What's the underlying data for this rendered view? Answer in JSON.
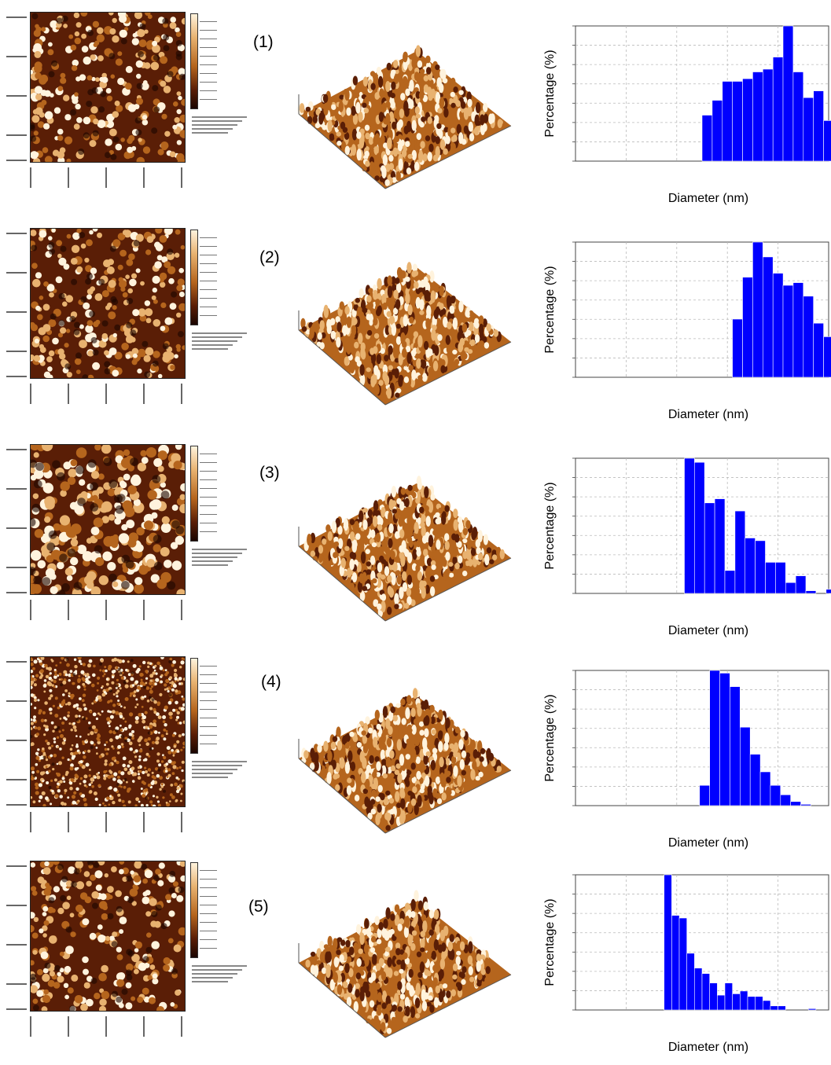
{
  "common": {
    "xlabel": "Diameter (nm)",
    "ylabel": "Percentage (%)",
    "bar_color": "#0000ff",
    "afm_colors": [
      "#1a0500",
      "#5a1e06",
      "#b5651d",
      "#e8b270",
      "#fff3dd"
    ]
  },
  "panels": [
    {
      "label": "(1)"
    },
    {
      "label": "(2)"
    },
    {
      "label": "(3)"
    },
    {
      "label": "(4)"
    },
    {
      "label": "(5)"
    }
  ],
  "chart_data": [
    {
      "type": "bar",
      "title": "",
      "xlabel": "Diameter (nm)",
      "ylabel": "Percentage (%)",
      "xlim": [
        0,
        1
      ],
      "ylim": [
        0,
        100
      ],
      "grid": true,
      "bins": [
        0.5,
        0.54,
        0.58,
        0.62,
        0.66,
        0.7,
        0.74,
        0.78,
        0.82,
        0.86,
        0.9,
        0.94,
        0.98
      ],
      "bin_width": 0.04,
      "values": [
        34,
        45,
        59,
        59,
        61,
        66,
        68,
        77,
        100,
        66,
        47,
        52,
        30
      ]
    },
    {
      "type": "bar",
      "title": "",
      "xlabel": "Diameter (nm)",
      "ylabel": "Percentage (%)",
      "xlim": [
        0,
        1
      ],
      "ylim": [
        0,
        100
      ],
      "grid": true,
      "bins": [
        0.62,
        0.66,
        0.7,
        0.74,
        0.78,
        0.82,
        0.86,
        0.9,
        0.94,
        0.98
      ],
      "bin_width": 0.04,
      "values": [
        43,
        74,
        100,
        89,
        77,
        68,
        70,
        60,
        40,
        30
      ]
    },
    {
      "type": "bar",
      "title": "",
      "xlabel": "Diameter (nm)",
      "ylabel": "Percentage (%)",
      "xlim": [
        0,
        1
      ],
      "ylim": [
        0,
        100
      ],
      "grid": true,
      "bins": [
        0.43,
        0.47,
        0.51,
        0.55,
        0.59,
        0.63,
        0.67,
        0.71,
        0.75,
        0.79,
        0.83,
        0.87,
        0.91,
        0.95,
        0.99
      ],
      "bin_width": 0.04,
      "values": [
        100,
        97,
        67,
        70,
        17,
        61,
        41,
        39,
        23,
        23,
        8,
        13,
        2,
        0,
        3
      ]
    },
    {
      "type": "bar",
      "title": "",
      "xlabel": "Diameter (nm)",
      "ylabel": "Percentage (%)",
      "xlim": [
        0,
        1
      ],
      "ylim": [
        0,
        100
      ],
      "grid": true,
      "bins": [
        0.49,
        0.53,
        0.57,
        0.61,
        0.65,
        0.69,
        0.73,
        0.77,
        0.81,
        0.85,
        0.89
      ],
      "bin_width": 0.04,
      "values": [
        15,
        100,
        98,
        88,
        58,
        38,
        25,
        15,
        8,
        3,
        1
      ]
    },
    {
      "type": "bar",
      "title": "",
      "xlabel": "Diameter (nm)",
      "ylabel": "Percentage (%)",
      "xlim": [
        0,
        1
      ],
      "ylim": [
        0,
        100
      ],
      "grid": true,
      "bins": [
        0.35,
        0.38,
        0.41,
        0.44,
        0.47,
        0.5,
        0.53,
        0.56,
        0.59,
        0.62,
        0.65,
        0.68,
        0.71,
        0.74,
        0.77,
        0.8,
        0.83,
        0.86,
        0.89,
        0.92,
        0.95
      ],
      "bin_width": 0.03,
      "values": [
        100,
        70,
        68,
        42,
        31,
        27,
        20,
        11,
        20,
        12,
        14,
        10,
        10,
        7,
        3,
        3,
        0,
        0,
        0,
        1,
        0
      ]
    }
  ]
}
